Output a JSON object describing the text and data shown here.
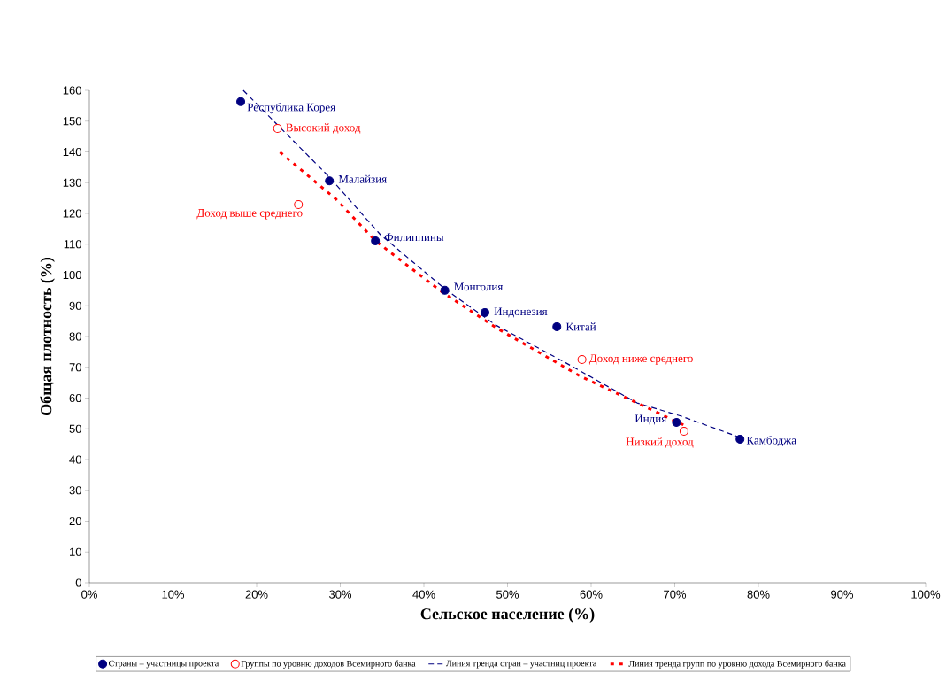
{
  "chart_data": {
    "type": "scatter",
    "xlabel": "Сельское население (%)",
    "ylabel": "Общая плотность (%)",
    "xlim": [
      0,
      100
    ],
    "ylim": [
      0,
      160
    ],
    "xticks": [
      {
        "value": 0,
        "label": "0%"
      },
      {
        "value": 10,
        "label": "10%"
      },
      {
        "value": 20,
        "label": "20%"
      },
      {
        "value": 30,
        "label": "30%"
      },
      {
        "value": 40,
        "label": "40%"
      },
      {
        "value": 50,
        "label": "50%"
      },
      {
        "value": 60,
        "label": "60%"
      },
      {
        "value": 70,
        "label": "70%"
      },
      {
        "value": 80,
        "label": "80%"
      },
      {
        "value": 90,
        "label": "90%"
      },
      {
        "value": 100,
        "label": "100%"
      }
    ],
    "yticks": [
      0,
      10,
      20,
      30,
      40,
      50,
      60,
      70,
      80,
      90,
      100,
      110,
      120,
      130,
      140,
      150,
      160
    ],
    "grid": false,
    "legend": "bottom",
    "series": [
      {
        "name": "Страны – участницы проекта",
        "marker": "circle",
        "color": "#000080",
        "x": [
          18.1,
          28.7,
          34.2,
          42.5,
          47.3,
          55.9,
          70.2,
          77.8
        ],
        "values": [
          156.3,
          130.6,
          111.1,
          95.0,
          87.8,
          83.2,
          52.1,
          46.6
        ]
      },
      {
        "name": "Группы по уровню доходов Всемирного банка",
        "marker": "circle",
        "color": "#ff0000",
        "x": [
          22.5,
          25.0,
          58.9,
          71.1
        ],
        "values": [
          147.6,
          122.9,
          72.5,
          49.2
        ]
      },
      {
        "name": "Линия тренда стран – участниц проекта",
        "type": "line",
        "line_style": "dashed",
        "color": "#000080",
        "x": [
          18.4,
          28.7,
          34.8,
          42.5,
          48.6,
          57.0,
          65.5,
          70.8,
          77.8
        ],
        "values": [
          160,
          131.8,
          113.1,
          95.5,
          83.7,
          71.4,
          58.4,
          54.1,
          47.2
        ]
      },
      {
        "name": "Линия тренда групп по уровню дохода Всемирного банка",
        "type": "line",
        "line_style": "dotted",
        "color": "#ff0000",
        "x": [
          22.8,
          29.5,
          34.2,
          42.2,
          48.6,
          58.7,
          71.1
        ],
        "values": [
          139.9,
          124.6,
          111.1,
          94.4,
          82.9,
          67.1,
          51.2
        ]
      }
    ],
    "annotations": [
      {
        "text": "Республика Корея",
        "x": 18.1,
        "y": 156.3
      },
      {
        "text": "Малайзия",
        "x": 28.7,
        "y": 130.6
      },
      {
        "text": "Филиппины",
        "x": 34.2,
        "y": 111.1
      },
      {
        "text": "Монголия",
        "x": 42.5,
        "y": 95.0
      },
      {
        "text": "Индонезия",
        "x": 47.3,
        "y": 87.8
      },
      {
        "text": "Китай",
        "x": 55.9,
        "y": 83.2
      },
      {
        "text": "Индия",
        "x": 70.2,
        "y": 52.1
      },
      {
        "text": "Камбоджа",
        "x": 77.8,
        "y": 46.6
      },
      {
        "text": "Высокий доход",
        "x": 22.5,
        "y": 147.6
      },
      {
        "text": "Доход выше среднего",
        "x": 25.0,
        "y": 122.9
      },
      {
        "text": "Доход ниже среднего",
        "x": 58.9,
        "y": 72.5
      },
      {
        "text": "Низкий доход",
        "x": 71.1,
        "y": 49.2
      }
    ]
  }
}
